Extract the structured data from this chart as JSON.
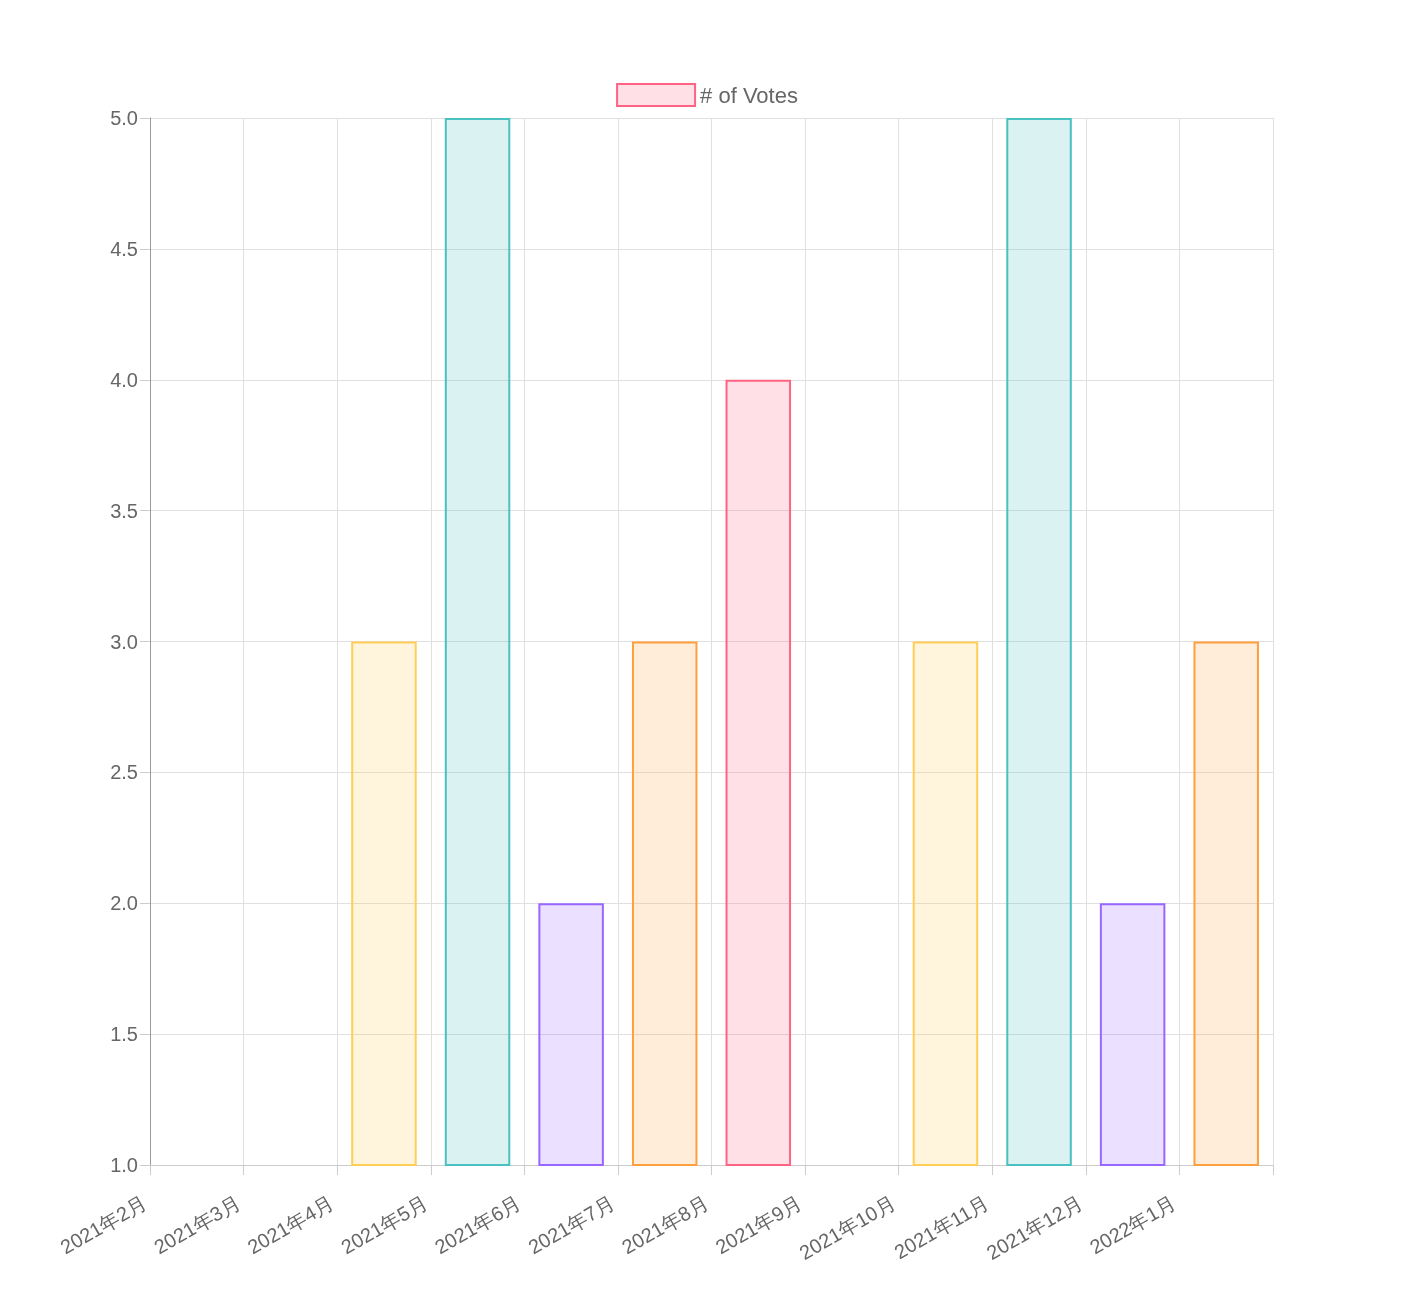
{
  "chart_data": {
    "type": "bar",
    "categories": [
      "2021年2月",
      "2021年3月",
      "2021年4月",
      "2021年5月",
      "2021年6月",
      "2021年7月",
      "2021年8月",
      "2021年9月",
      "2021年10月",
      "2021年11月",
      "2021年12月",
      "2022年1月"
    ],
    "series": [
      {
        "name": "# of Votes",
        "color": "#ff6384",
        "values": [
          null,
          null,
          3,
          5,
          2,
          3,
          4,
          null,
          3,
          5,
          2,
          3
        ],
        "colors": [
          "#ff6384",
          "#36a2eb",
          "#ffce56",
          "#4bc0c0",
          "#9966ff",
          "#ff9f40",
          "#ff6384",
          "#36a2eb",
          "#ffce56",
          "#4bc0c0",
          "#9966ff",
          "#ff9f40"
        ]
      }
    ],
    "ylim": [
      1,
      5
    ],
    "yticks": [
      {
        "value": 1,
        "label": "1.0"
      },
      1.5,
      {
        "value": 2,
        "label": "2.0"
      },
      2.5,
      {
        "value": 3,
        "label": "3.0"
      },
      3.5,
      {
        "value": 4,
        "label": "4.0"
      },
      4.5,
      {
        "value": 5,
        "label": "5.0"
      }
    ],
    "grid": true,
    "legend": "top"
  }
}
